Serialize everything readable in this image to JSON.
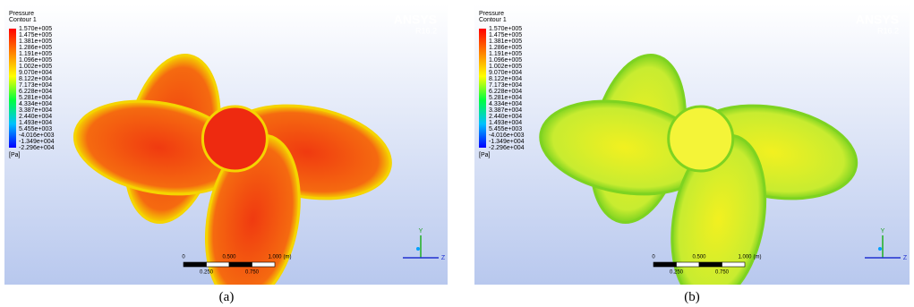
{
  "panels": [
    {
      "caption": "(a)",
      "legend": {
        "title": "Pressure",
        "subtitle": "Contour 1",
        "unit": "[Pa]",
        "labels": [
          "1.570e+005",
          "1.475e+005",
          "1.381e+005",
          "1.286e+005",
          "1.191e+005",
          "1.096e+005",
          "1.002e+005",
          "9.070e+004",
          "8.122e+004",
          "7.173e+004",
          "6.228e+004",
          "5.281e+004",
          "4.334e+004",
          "3.387e+004",
          "2.440e+004",
          "1.493e+004",
          "5.455e+003",
          "-4.016e+003",
          "-1.349e+004",
          "-2.296e+004"
        ]
      },
      "logo": {
        "name": "ANSYS",
        "version": "R16.2"
      },
      "scale": {
        "top": [
          "0",
          "0.500",
          "1.000",
          "(m)"
        ],
        "bottom": [
          "0.250",
          "0.750"
        ]
      },
      "triad": [
        "Y",
        "Z"
      ]
    },
    {
      "caption": "(b)",
      "legend": {
        "title": "Pressure",
        "subtitle": "Contour 1",
        "unit": "[Pa]",
        "labels": [
          "1.570e+005",
          "1.475e+005",
          "1.381e+005",
          "1.286e+005",
          "1.191e+005",
          "1.096e+005",
          "1.002e+005",
          "9.070e+004",
          "8.122e+004",
          "7.173e+004",
          "6.228e+004",
          "5.281e+004",
          "4.334e+004",
          "3.387e+004",
          "2.440e+004",
          "1.493e+004",
          "5.455e+003",
          "-4.016e+003",
          "-1.349e+004",
          "-2.296e+004"
        ]
      },
      "logo": {
        "name": "ANSYS",
        "version": "R16.2"
      },
      "scale": {
        "top": [
          "0",
          "0.500",
          "1.000",
          "(m)"
        ],
        "bottom": [
          "0.250",
          "0.750"
        ]
      },
      "triad": [
        "Y",
        "Z"
      ]
    }
  ]
}
